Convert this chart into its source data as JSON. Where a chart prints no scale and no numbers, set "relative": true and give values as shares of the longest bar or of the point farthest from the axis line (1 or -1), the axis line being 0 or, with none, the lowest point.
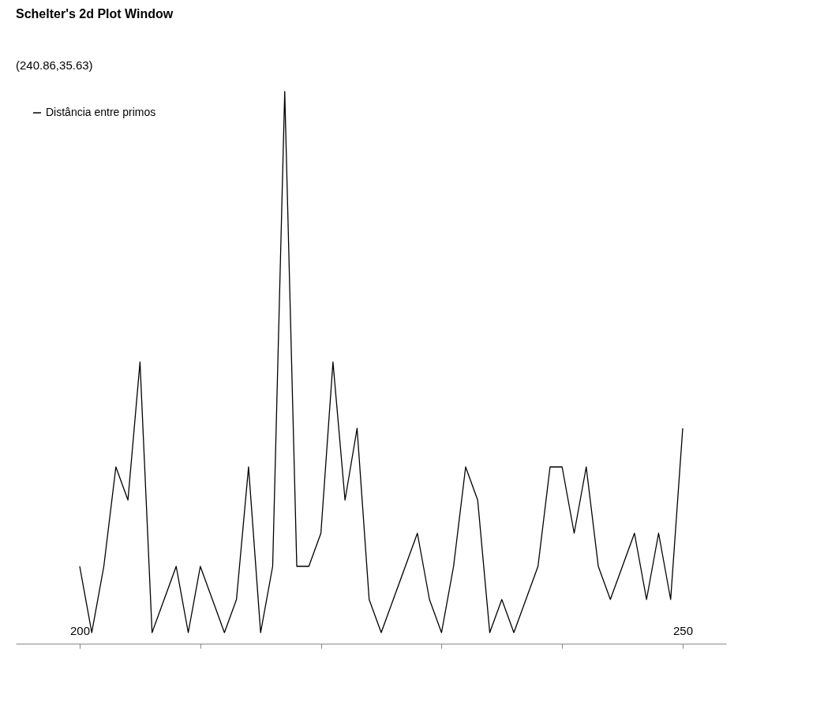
{
  "chart_data": {
    "type": "line",
    "title": "Schelter's 2d Plot Window",
    "annotations": [
      "(240.86,35.63)"
    ],
    "x": [
      200,
      201,
      202,
      203,
      204,
      205,
      206,
      207,
      208,
      209,
      210,
      211,
      212,
      213,
      214,
      215,
      216,
      217,
      218,
      219,
      220,
      221,
      222,
      223,
      224,
      225,
      226,
      227,
      228,
      229,
      230,
      231,
      232,
      233,
      234,
      235,
      236,
      237,
      238,
      239,
      240,
      241,
      242,
      243,
      244,
      245,
      246,
      247,
      248,
      249,
      250
    ],
    "series": [
      {
        "name": "Distância entre primos",
        "color": "#000000",
        "values": [
          0.14,
          0.02,
          0.14,
          0.32,
          0.26,
          0.51,
          0.02,
          0.08,
          0.14,
          0.02,
          0.14,
          0.08,
          0.02,
          0.08,
          0.32,
          0.02,
          0.14,
          1,
          0.14,
          0.14,
          0.2,
          0.51,
          0.26,
          0.39,
          0.08,
          0.02,
          0.08,
          0.14,
          0.2,
          0.08,
          0.02,
          0.14,
          0.32,
          0.26,
          0.02,
          0.08,
          0.02,
          0.08,
          0.14,
          0.32,
          0.32,
          0.2,
          0.32,
          0.14,
          0.08,
          0.14,
          0.2,
          0.08,
          0.2,
          0.08,
          0.39
        ]
      }
    ],
    "relative": true,
    "xlim": [
      194.7,
      253.6
    ],
    "xticks": [
      200,
      {
        "value": 210,
        "label": null
      },
      {
        "value": 220,
        "label": null
      },
      {
        "value": 230,
        "label": null
      },
      {
        "value": 240,
        "label": null
      },
      250
    ],
    "legend": "top left",
    "grid": false,
    "marker": "none",
    "line_style": "solid"
  }
}
